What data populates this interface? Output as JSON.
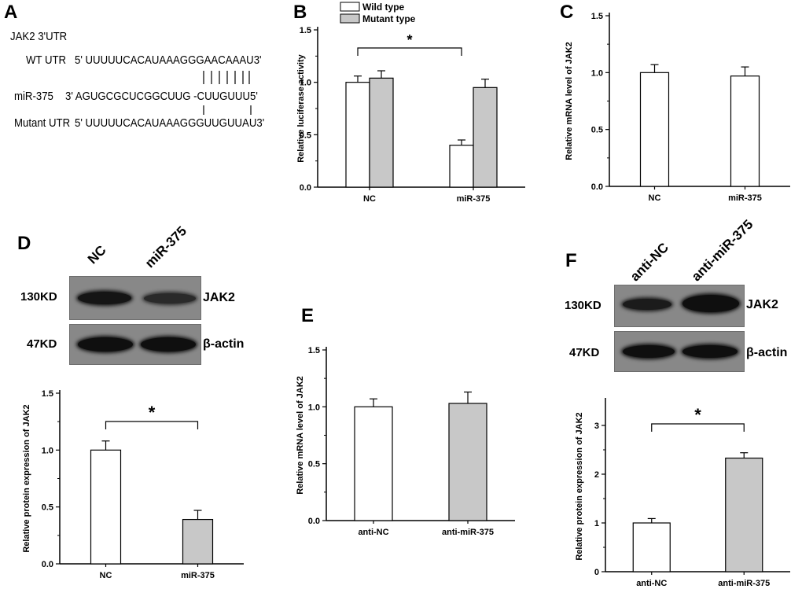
{
  "panel_A": {
    "letter": "A",
    "title": "JAK2 3'UTR",
    "wt_label": "WT UTR",
    "wt_seq": "5' UUUUUCACAUAAAGGGAACAAAU3'",
    "mir_label": "miR-375",
    "mir_seq": "3' AGUGCGCUCGGCUUG -CUUGUUU5'",
    "mut_label": "Mutant UTR",
    "mut_seq": "5' UUUUUCACAUAAAGGGUUGUUAU3'"
  },
  "panel_D_blot": {
    "letter": "D",
    "lanes": [
      "NC",
      "miR-375"
    ],
    "rows": [
      {
        "size": "130KD",
        "protein": "JAK2",
        "band_intensity": [
          0.9,
          0.55
        ]
      },
      {
        "size": "47KD",
        "protein": "β-actin",
        "band_intensity": [
          1.0,
          1.0
        ]
      }
    ]
  },
  "panel_F_blot": {
    "letter": "F",
    "lanes": [
      "anti-NC",
      "anti-miR-375"
    ],
    "rows": [
      {
        "size": "130KD",
        "protein": "JAK2",
        "band_intensity": [
          0.8,
          1.0
        ]
      },
      {
        "size": "47KD",
        "protein": "β-actin",
        "band_intensity": [
          1.0,
          1.0
        ]
      }
    ]
  },
  "chart_data": [
    {
      "panel": "B",
      "type": "bar",
      "categories": [
        "NC",
        "miR-375"
      ],
      "series": [
        {
          "name": "Wild type",
          "values": [
            1.0,
            0.4
          ],
          "errors": [
            0.06,
            0.05
          ],
          "color": "#ffffff"
        },
        {
          "name": "Mutant type",
          "values": [
            1.04,
            0.95
          ],
          "errors": [
            0.07,
            0.08
          ],
          "color": "#c8c8c8"
        }
      ],
      "ylabel": "Relative luciferase activity",
      "ylim": [
        0,
        1.5
      ],
      "yticks": [
        0.0,
        0.5,
        1.0,
        1.5
      ],
      "ytick_labels": [
        "0.0",
        "0.5",
        "1.0",
        "1.5"
      ],
      "legend": "top-left",
      "significance": {
        "from": [
          0,
          0
        ],
        "to": [
          1,
          0
        ],
        "label": "*"
      }
    },
    {
      "panel": "C",
      "type": "bar",
      "categories": [
        "NC",
        "miR-375"
      ],
      "values": [
        1.0,
        0.97
      ],
      "errors": [
        0.07,
        0.08
      ],
      "colors": [
        "#ffffff",
        "#ffffff"
      ],
      "ylabel": "Relative  mRNA level of JAK2",
      "ylim": [
        0,
        1.5
      ],
      "yticks": [
        0.0,
        0.5,
        1.0,
        1.5
      ],
      "ytick_labels": [
        "0.0",
        "0.5",
        "1.0",
        "1.5"
      ]
    },
    {
      "panel": "D",
      "type": "bar",
      "categories": [
        "NC",
        "miR-375"
      ],
      "values": [
        1.0,
        0.39
      ],
      "errors": [
        0.08,
        0.08
      ],
      "colors": [
        "#ffffff",
        "#c8c8c8"
      ],
      "ylabel": "Relative  protein expression of JAK2",
      "ylim": [
        0,
        1.5
      ],
      "yticks": [
        0.0,
        0.5,
        1.0,
        1.5
      ],
      "ytick_labels": [
        "0.0",
        "0.5",
        "1.0",
        "1.5"
      ],
      "significance": {
        "from": 0,
        "to": 1,
        "label": "*"
      }
    },
    {
      "panel": "E",
      "type": "bar",
      "categories": [
        "anti-NC",
        "anti-miR-375"
      ],
      "values": [
        1.0,
        1.03
      ],
      "errors": [
        0.07,
        0.1
      ],
      "colors": [
        "#ffffff",
        "#c8c8c8"
      ],
      "ylabel": "Relative  mRNA level of JAK2",
      "ylim": [
        0,
        1.5
      ],
      "yticks": [
        0.0,
        0.5,
        1.0,
        1.5
      ],
      "ytick_labels": [
        "0.0",
        "0.5",
        "1.0",
        "1.5"
      ]
    },
    {
      "panel": "F",
      "type": "bar",
      "categories": [
        "anti-NC",
        "anti-miR-375"
      ],
      "values": [
        1.0,
        2.33
      ],
      "errors": [
        0.09,
        0.11
      ],
      "colors": [
        "#ffffff",
        "#c8c8c8"
      ],
      "ylabel": "Relative  protein expression of JAK2",
      "ylim": [
        0,
        3.5
      ],
      "yticks": [
        0,
        1,
        2,
        3
      ],
      "ytick_labels": [
        "0",
        "1",
        "2",
        "3"
      ],
      "significance": {
        "from": 0,
        "to": 1,
        "label": "*"
      }
    }
  ]
}
